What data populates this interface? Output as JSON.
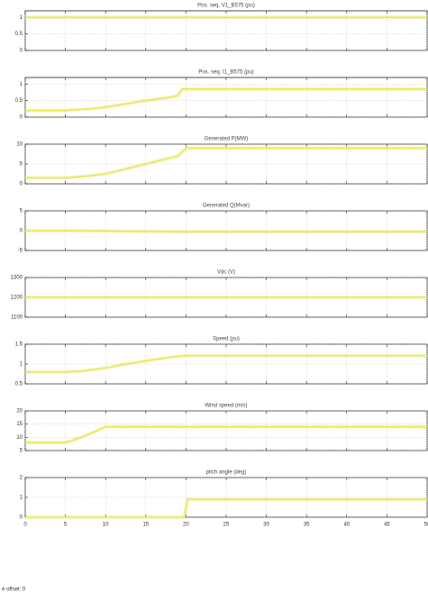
{
  "chart_data": [
    {
      "type": "line",
      "title": "Pos. seq. V1_B575 (pu)",
      "xlim": [
        0,
        50
      ],
      "xticks": [
        0,
        5,
        10,
        15,
        20,
        25,
        30,
        35,
        40,
        45,
        50
      ],
      "ylim": [
        0,
        1.2
      ],
      "yticks": [
        0,
        0.5,
        1
      ],
      "grid": true,
      "x": [
        0,
        5,
        10,
        15,
        20,
        25,
        30,
        35,
        40,
        45,
        50
      ],
      "series": [
        {
          "color": "#e6e650",
          "values": [
            1,
            1,
            1,
            1,
            1,
            1,
            1,
            1,
            1,
            1,
            1
          ]
        }
      ]
    },
    {
      "type": "line",
      "title": "Pos. seq. I1_B575 (pu)",
      "xlim": [
        0,
        50
      ],
      "xticks": [
        0,
        5,
        10,
        15,
        20,
        25,
        30,
        35,
        40,
        45,
        50
      ],
      "ylim": [
        0,
        1.2
      ],
      "yticks": [
        0,
        0.5,
        1
      ],
      "grid": true,
      "x": [
        0,
        5,
        8,
        10,
        12,
        15,
        18,
        19,
        19.5,
        25,
        30,
        40,
        50
      ],
      "series": [
        {
          "color": "#e6e650",
          "values": [
            0.2,
            0.2,
            0.25,
            0.3,
            0.38,
            0.5,
            0.6,
            0.65,
            0.85,
            0.85,
            0.85,
            0.85,
            0.85
          ]
        }
      ]
    },
    {
      "type": "line",
      "title": "Generated P(MW)",
      "xlim": [
        0,
        50
      ],
      "xticks": [
        0,
        5,
        10,
        15,
        20,
        25,
        30,
        35,
        40,
        45,
        50
      ],
      "ylim": [
        0,
        10
      ],
      "yticks": [
        0,
        5,
        10
      ],
      "grid": true,
      "x": [
        0,
        5,
        8,
        10,
        12,
        15,
        18,
        19,
        20,
        25,
        30,
        40,
        50
      ],
      "series": [
        {
          "color": "#e6e650",
          "values": [
            1.5,
            1.5,
            2,
            2.5,
            3.5,
            5,
            6.5,
            7,
            9,
            9,
            9,
            9,
            9
          ]
        }
      ]
    },
    {
      "type": "line",
      "title": "Generated Q(Mvar)",
      "xlim": [
        0,
        50
      ],
      "xticks": [
        0,
        5,
        10,
        15,
        20,
        25,
        30,
        35,
        40,
        45,
        50
      ],
      "ylim": [
        -5,
        5
      ],
      "yticks": [
        -5,
        0,
        5
      ],
      "grid": true,
      "x": [
        0,
        5,
        10,
        15,
        20,
        25,
        30,
        40,
        50
      ],
      "series": [
        {
          "color": "#e6e650",
          "values": [
            0,
            0,
            -0.1,
            -0.2,
            -0.3,
            -0.3,
            -0.3,
            -0.3,
            -0.3
          ]
        }
      ]
    },
    {
      "type": "line",
      "title": "Vdc (V)",
      "xlim": [
        0,
        50
      ],
      "xticks": [
        0,
        5,
        10,
        15,
        20,
        25,
        30,
        35,
        40,
        45,
        50
      ],
      "ylim": [
        1100,
        1300
      ],
      "yticks": [
        1100,
        1200,
        1300
      ],
      "grid": true,
      "x": [
        0,
        10,
        20,
        30,
        40,
        50
      ],
      "series": [
        {
          "color": "#e6e650",
          "values": [
            1200,
            1200,
            1200,
            1200,
            1200,
            1200
          ]
        }
      ]
    },
    {
      "type": "line",
      "title": "Speed (pu)",
      "xlim": [
        0,
        50
      ],
      "xticks": [
        0,
        5,
        10,
        15,
        20,
        25,
        30,
        35,
        40,
        45,
        50
      ],
      "ylim": [
        0.5,
        1.5
      ],
      "yticks": [
        0.5,
        1,
        1.5
      ],
      "grid": true,
      "x": [
        0,
        5,
        7,
        10,
        12,
        15,
        18,
        20,
        25,
        30,
        40,
        50
      ],
      "series": [
        {
          "color": "#e6e650",
          "values": [
            0.8,
            0.8,
            0.82,
            0.9,
            0.98,
            1.08,
            1.17,
            1.21,
            1.21,
            1.21,
            1.21,
            1.21
          ]
        }
      ]
    },
    {
      "type": "line",
      "title": "Wind speed (m/s)",
      "xlim": [
        0,
        50
      ],
      "xticks": [
        0,
        5,
        10,
        15,
        20,
        25,
        30,
        35,
        40,
        45,
        50
      ],
      "ylim": [
        5,
        20
      ],
      "yticks": [
        5,
        10,
        15,
        20
      ],
      "grid": true,
      "x": [
        0,
        5,
        7,
        10,
        15,
        20,
        30,
        40,
        50
      ],
      "series": [
        {
          "color": "#e6e650",
          "values": [
            8,
            8,
            10,
            14,
            14,
            14,
            14,
            14,
            14
          ]
        }
      ]
    },
    {
      "type": "line",
      "title": "pitch angle (deg)",
      "xlim": [
        0,
        50
      ],
      "xticks": [
        0,
        5,
        10,
        15,
        20,
        25,
        30,
        35,
        40,
        45,
        50
      ],
      "ylim": [
        0,
        2
      ],
      "yticks": [
        0,
        1,
        2
      ],
      "grid": true,
      "show_xtick_labels": true,
      "x": [
        0,
        10,
        19.8,
        20.2,
        25,
        30,
        40,
        50
      ],
      "series": [
        {
          "color": "#e6e650",
          "values": [
            0,
            0,
            0,
            0.9,
            0.9,
            0.9,
            0.9,
            0.9
          ]
        }
      ]
    }
  ],
  "footer": "e offset: 0"
}
